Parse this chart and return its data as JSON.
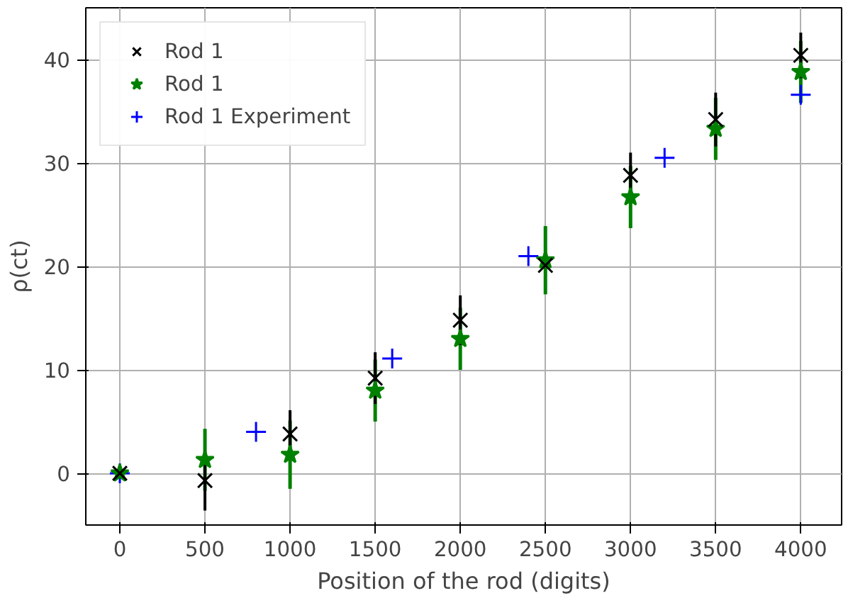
{
  "chart_data": {
    "type": "scatter",
    "xlabel": "Position of the rod (digits)",
    "ylabel": "ρ(ct)",
    "xlim": [
      -200,
      4240
    ],
    "ylim": [
      -5,
      45
    ],
    "xticks": [
      0,
      500,
      1000,
      1500,
      2000,
      2500,
      3000,
      3500,
      4000
    ],
    "yticks": [
      0,
      10,
      20,
      30,
      40
    ],
    "grid": true,
    "legend": "top left",
    "series": [
      {
        "name": "Rod 1",
        "color": "#000000",
        "marker": "x",
        "x": [
          0,
          500,
          1000,
          1500,
          2000,
          2500,
          3000,
          3500,
          4000
        ],
        "values": [
          0,
          -0.7,
          3.8,
          9.2,
          14.8,
          20.1,
          28.8,
          34.2,
          40.4
        ],
        "errors": [
          null,
          2.9,
          2.3,
          2.5,
          2.4,
          null,
          2.2,
          2.6,
          2.2
        ]
      },
      {
        "name": "Rod 1",
        "color": "#008000",
        "marker": "star",
        "x": [
          0,
          500,
          1000,
          1500,
          2000,
          2500,
          3000,
          3500,
          4000
        ],
        "values": [
          0,
          1.3,
          1.8,
          8.0,
          13.0,
          20.6,
          26.7,
          33.3,
          38.8
        ],
        "errors": [
          null,
          3.0,
          3.3,
          3.0,
          3.0,
          3.3,
          3.0,
          3.0,
          3.0
        ]
      },
      {
        "name": "Rod 1 Experiment",
        "color": "#0000ff",
        "marker": "cross",
        "x": [
          0,
          800,
          1600,
          2400,
          3200,
          4000
        ],
        "values": [
          0,
          4.0,
          11.1,
          21.0,
          30.5,
          36.6
        ]
      }
    ]
  }
}
